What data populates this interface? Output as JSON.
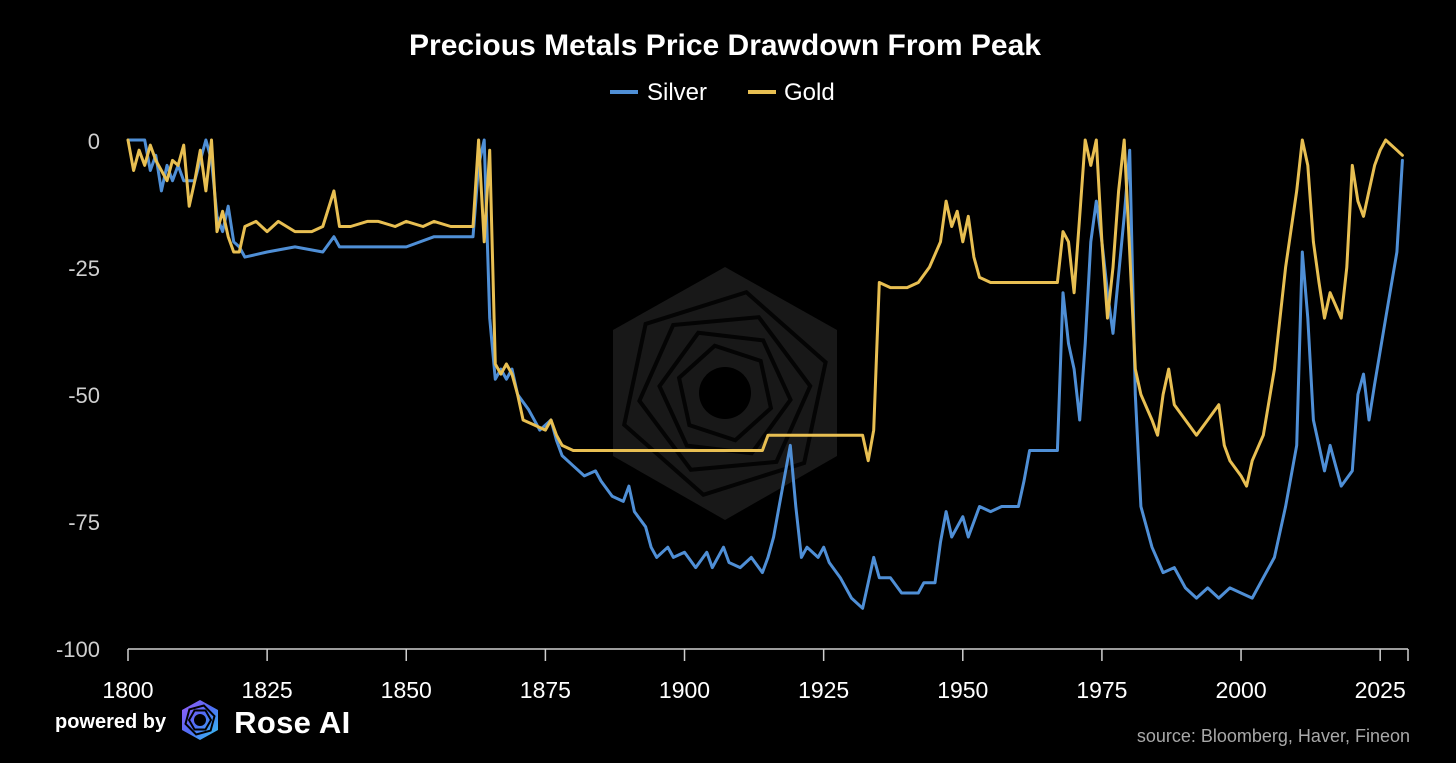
{
  "chart_data": {
    "type": "line",
    "title": "Precious Metals Price Drawdown From Peak",
    "xlabel": "",
    "ylabel": "",
    "xlim": [
      1800,
      2030
    ],
    "ylim": [
      -100,
      0
    ],
    "x_ticks": [
      "1800",
      "1825",
      "1850",
      "1875",
      "1900",
      "1925",
      "1950",
      "1975",
      "2000",
      "2025"
    ],
    "y_ticks": [
      "0",
      "-25",
      "-50",
      "-75",
      "-100"
    ],
    "legend_position": "top-center",
    "grid": false,
    "series": [
      {
        "name": "Silver",
        "color": "#4f8fd6",
        "points": [
          [
            1800,
            0
          ],
          [
            1803,
            0
          ],
          [
            1804,
            -6
          ],
          [
            1805,
            -3
          ],
          [
            1806,
            -10
          ],
          [
            1807,
            -5
          ],
          [
            1808,
            -8
          ],
          [
            1809,
            -5
          ],
          [
            1810,
            -8
          ],
          [
            1812,
            -8
          ],
          [
            1813,
            -4
          ],
          [
            1814,
            0
          ],
          [
            1815,
            -4
          ],
          [
            1816,
            -15
          ],
          [
            1817,
            -18
          ],
          [
            1818,
            -13
          ],
          [
            1819,
            -20
          ],
          [
            1820,
            -21
          ],
          [
            1821,
            -23
          ],
          [
            1825,
            -22
          ],
          [
            1830,
            -21
          ],
          [
            1835,
            -22
          ],
          [
            1837,
            -19
          ],
          [
            1838,
            -21
          ],
          [
            1840,
            -21
          ],
          [
            1845,
            -21
          ],
          [
            1850,
            -21
          ],
          [
            1855,
            -19
          ],
          [
            1860,
            -19
          ],
          [
            1862,
            -19
          ],
          [
            1863,
            -5
          ],
          [
            1864,
            0
          ],
          [
            1865,
            -35
          ],
          [
            1866,
            -47
          ],
          [
            1867,
            -45
          ],
          [
            1868,
            -47
          ],
          [
            1869,
            -45
          ],
          [
            1870,
            -50
          ],
          [
            1872,
            -53
          ],
          [
            1874,
            -57
          ],
          [
            1876,
            -55
          ],
          [
            1877,
            -59
          ],
          [
            1878,
            -62
          ],
          [
            1880,
            -64
          ],
          [
            1882,
            -66
          ],
          [
            1884,
            -65
          ],
          [
            1885,
            -67
          ],
          [
            1887,
            -70
          ],
          [
            1889,
            -71
          ],
          [
            1890,
            -68
          ],
          [
            1891,
            -73
          ],
          [
            1893,
            -76
          ],
          [
            1894,
            -80
          ],
          [
            1895,
            -82
          ],
          [
            1897,
            -80
          ],
          [
            1898,
            -82
          ],
          [
            1900,
            -81
          ],
          [
            1902,
            -84
          ],
          [
            1904,
            -81
          ],
          [
            1905,
            -84
          ],
          [
            1907,
            -80
          ],
          [
            1908,
            -83
          ],
          [
            1910,
            -84
          ],
          [
            1912,
            -82
          ],
          [
            1914,
            -85
          ],
          [
            1915,
            -82
          ],
          [
            1916,
            -78
          ],
          [
            1917,
            -72
          ],
          [
            1918,
            -66
          ],
          [
            1919,
            -60
          ],
          [
            1920,
            -72
          ],
          [
            1921,
            -82
          ],
          [
            1922,
            -80
          ],
          [
            1924,
            -82
          ],
          [
            1925,
            -80
          ],
          [
            1926,
            -83
          ],
          [
            1928,
            -86
          ],
          [
            1930,
            -90
          ],
          [
            1932,
            -92
          ],
          [
            1933,
            -87
          ],
          [
            1934,
            -82
          ],
          [
            1935,
            -86
          ],
          [
            1937,
            -86
          ],
          [
            1939,
            -89
          ],
          [
            1942,
            -89
          ],
          [
            1943,
            -87
          ],
          [
            1945,
            -87
          ],
          [
            1946,
            -79
          ],
          [
            1947,
            -73
          ],
          [
            1948,
            -78
          ],
          [
            1950,
            -74
          ],
          [
            1951,
            -78
          ],
          [
            1953,
            -72
          ],
          [
            1955,
            -73
          ],
          [
            1957,
            -72
          ],
          [
            1960,
            -72
          ],
          [
            1961,
            -67
          ],
          [
            1962,
            -61
          ],
          [
            1967,
            -61
          ],
          [
            1968,
            -30
          ],
          [
            1969,
            -40
          ],
          [
            1970,
            -45
          ],
          [
            1971,
            -55
          ],
          [
            1972,
            -40
          ],
          [
            1973,
            -20
          ],
          [
            1974,
            -12
          ],
          [
            1975,
            -20
          ],
          [
            1976,
            -30
          ],
          [
            1977,
            -38
          ],
          [
            1979,
            -15
          ],
          [
            1980,
            -2
          ],
          [
            1981,
            -50
          ],
          [
            1982,
            -72
          ],
          [
            1984,
            -80
          ],
          [
            1986,
            -85
          ],
          [
            1988,
            -84
          ],
          [
            1990,
            -88
          ],
          [
            1992,
            -90
          ],
          [
            1994,
            -88
          ],
          [
            1996,
            -90
          ],
          [
            1998,
            -88
          ],
          [
            2000,
            -89
          ],
          [
            2002,
            -90
          ],
          [
            2004,
            -86
          ],
          [
            2006,
            -82
          ],
          [
            2008,
            -72
          ],
          [
            2010,
            -60
          ],
          [
            2011,
            -22
          ],
          [
            2012,
            -35
          ],
          [
            2013,
            -55
          ],
          [
            2015,
            -65
          ],
          [
            2016,
            -60
          ],
          [
            2018,
            -68
          ],
          [
            2020,
            -65
          ],
          [
            2021,
            -50
          ],
          [
            2022,
            -46
          ],
          [
            2023,
            -55
          ],
          [
            2024,
            -48
          ],
          [
            2026,
            -35
          ],
          [
            2028,
            -22
          ],
          [
            2029,
            -4
          ]
        ]
      },
      {
        "name": "Gold",
        "color": "#e8bf52",
        "points": [
          [
            1800,
            0
          ],
          [
            1801,
            -6
          ],
          [
            1802,
            -2
          ],
          [
            1803,
            -5
          ],
          [
            1804,
            -1
          ],
          [
            1805,
            -4
          ],
          [
            1806,
            -6
          ],
          [
            1807,
            -8
          ],
          [
            1808,
            -4
          ],
          [
            1809,
            -5
          ],
          [
            1810,
            -1
          ],
          [
            1811,
            -13
          ],
          [
            1812,
            -8
          ],
          [
            1813,
            -2
          ],
          [
            1814,
            -10
          ],
          [
            1815,
            0
          ],
          [
            1816,
            -18
          ],
          [
            1817,
            -14
          ],
          [
            1818,
            -19
          ],
          [
            1819,
            -22
          ],
          [
            1820,
            -22
          ],
          [
            1821,
            -17
          ],
          [
            1823,
            -16
          ],
          [
            1825,
            -18
          ],
          [
            1827,
            -16
          ],
          [
            1830,
            -18
          ],
          [
            1833,
            -18
          ],
          [
            1835,
            -17
          ],
          [
            1837,
            -10
          ],
          [
            1838,
            -17
          ],
          [
            1840,
            -17
          ],
          [
            1843,
            -16
          ],
          [
            1845,
            -16
          ],
          [
            1848,
            -17
          ],
          [
            1850,
            -16
          ],
          [
            1853,
            -17
          ],
          [
            1855,
            -16
          ],
          [
            1858,
            -17
          ],
          [
            1860,
            -17
          ],
          [
            1862,
            -17
          ],
          [
            1863,
            0
          ],
          [
            1864,
            -20
          ],
          [
            1865,
            -2
          ],
          [
            1866,
            -44
          ],
          [
            1867,
            -46
          ],
          [
            1868,
            -44
          ],
          [
            1869,
            -46
          ],
          [
            1870,
            -50
          ],
          [
            1871,
            -55
          ],
          [
            1873,
            -56
          ],
          [
            1875,
            -57
          ],
          [
            1876,
            -55
          ],
          [
            1877,
            -58
          ],
          [
            1878,
            -60
          ],
          [
            1880,
            -61
          ],
          [
            1890,
            -61
          ],
          [
            1900,
            -61
          ],
          [
            1910,
            -61
          ],
          [
            1914,
            -61
          ],
          [
            1915,
            -58
          ],
          [
            1920,
            -58
          ],
          [
            1925,
            -58
          ],
          [
            1930,
            -58
          ],
          [
            1932,
            -58
          ],
          [
            1933,
            -63
          ],
          [
            1934,
            -57
          ],
          [
            1935,
            -28
          ],
          [
            1937,
            -29
          ],
          [
            1940,
            -29
          ],
          [
            1942,
            -28
          ],
          [
            1944,
            -25
          ],
          [
            1946,
            -20
          ],
          [
            1947,
            -12
          ],
          [
            1948,
            -17
          ],
          [
            1949,
            -14
          ],
          [
            1950,
            -20
          ],
          [
            1951,
            -15
          ],
          [
            1952,
            -23
          ],
          [
            1953,
            -27
          ],
          [
            1955,
            -28
          ],
          [
            1960,
            -28
          ],
          [
            1965,
            -28
          ],
          [
            1967,
            -28
          ],
          [
            1968,
            -18
          ],
          [
            1969,
            -20
          ],
          [
            1970,
            -30
          ],
          [
            1971,
            -15
          ],
          [
            1972,
            0
          ],
          [
            1973,
            -5
          ],
          [
            1974,
            0
          ],
          [
            1975,
            -20
          ],
          [
            1976,
            -35
          ],
          [
            1977,
            -25
          ],
          [
            1978,
            -10
          ],
          [
            1979,
            0
          ],
          [
            1980,
            -22
          ],
          [
            1981,
            -45
          ],
          [
            1982,
            -50
          ],
          [
            1984,
            -55
          ],
          [
            1985,
            -58
          ],
          [
            1986,
            -50
          ],
          [
            1987,
            -45
          ],
          [
            1988,
            -52
          ],
          [
            1990,
            -55
          ],
          [
            1992,
            -58
          ],
          [
            1994,
            -55
          ],
          [
            1996,
            -52
          ],
          [
            1997,
            -60
          ],
          [
            1998,
            -63
          ],
          [
            2000,
            -66
          ],
          [
            2001,
            -68
          ],
          [
            2002,
            -63
          ],
          [
            2004,
            -58
          ],
          [
            2006,
            -45
          ],
          [
            2008,
            -25
          ],
          [
            2010,
            -10
          ],
          [
            2011,
            0
          ],
          [
            2012,
            -5
          ],
          [
            2013,
            -20
          ],
          [
            2014,
            -28
          ],
          [
            2015,
            -35
          ],
          [
            2016,
            -30
          ],
          [
            2018,
            -35
          ],
          [
            2019,
            -25
          ],
          [
            2020,
            -5
          ],
          [
            2021,
            -12
          ],
          [
            2022,
            -15
          ],
          [
            2023,
            -10
          ],
          [
            2024,
            -5
          ],
          [
            2025,
            -2
          ],
          [
            2026,
            0
          ],
          [
            2027,
            -1
          ],
          [
            2028,
            -2
          ],
          [
            2029,
            -3
          ]
        ]
      }
    ],
    "watermark": "rose-ai-logo"
  },
  "footer": {
    "powered_by": "powered by",
    "brand": "Rose AI",
    "source": "source: Bloomberg, Haver, Fineon"
  },
  "icons": {
    "brand_logo": "rose-ai-hexagon-icon"
  }
}
